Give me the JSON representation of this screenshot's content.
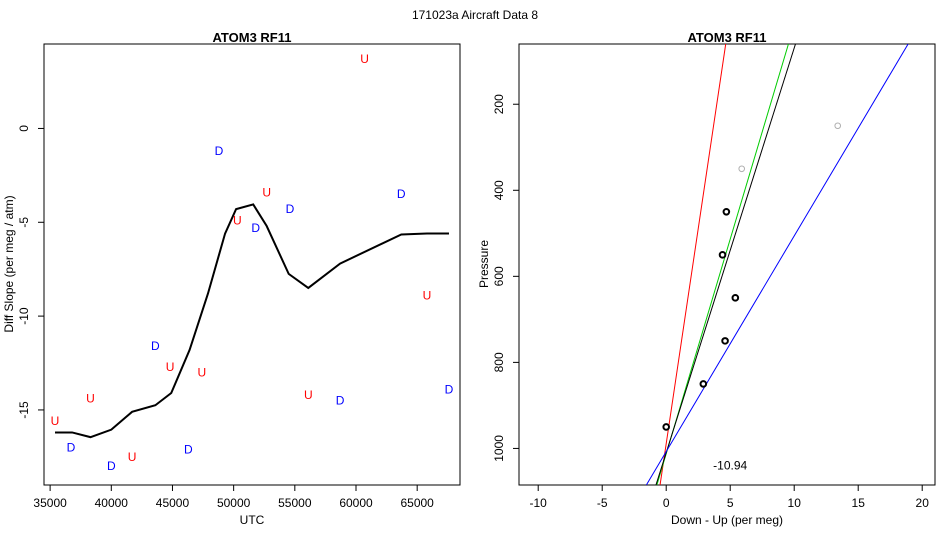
{
  "page_title": "171023a   Aircraft Data 8",
  "chart_data": [
    {
      "type": "scatter",
      "title": "ATOM3 RF11",
      "xlabel": "UTC",
      "ylabel": "Diff Slope (per meg / atm)",
      "xlim": [
        34500,
        68500
      ],
      "ylim": [
        -19.0,
        4.5
      ],
      "xticks": [
        35000,
        40000,
        45000,
        50000,
        55000,
        60000,
        65000
      ],
      "yticks": [
        -15,
        -10,
        -5,
        0
      ],
      "colors": {
        "U": "#ff0000",
        "D": "#0000ff",
        "line": "#000000"
      },
      "series": [
        {
          "name": "U",
          "points": [
            {
              "x": 35400,
              "y": -15.6
            },
            {
              "x": 38300,
              "y": -14.4
            },
            {
              "x": 41700,
              "y": -17.5
            },
            {
              "x": 44800,
              "y": -12.7
            },
            {
              "x": 47400,
              "y": -13.0
            },
            {
              "x": 50300,
              "y": -4.9
            },
            {
              "x": 52700,
              "y": -3.4
            },
            {
              "x": 56100,
              "y": -14.2
            },
            {
              "x": 60700,
              "y": 3.7
            },
            {
              "x": 65800,
              "y": -8.9
            }
          ]
        },
        {
          "name": "D",
          "points": [
            {
              "x": 36700,
              "y": -17.0
            },
            {
              "x": 40000,
              "y": -18.0
            },
            {
              "x": 43600,
              "y": -11.6
            },
            {
              "x": 46300,
              "y": -17.1
            },
            {
              "x": 48800,
              "y": -1.2
            },
            {
              "x": 51800,
              "y": -5.3
            },
            {
              "x": 54600,
              "y": -4.3
            },
            {
              "x": 58700,
              "y": -14.5
            },
            {
              "x": 63700,
              "y": -3.5
            },
            {
              "x": 67600,
              "y": -13.9
            }
          ]
        }
      ],
      "smooth_line": {
        "x": [
          35400,
          36800,
          38300,
          40000,
          41700,
          43600,
          44900,
          46400,
          47900,
          49300,
          50200,
          51600,
          52700,
          54500,
          56100,
          58700,
          63700,
          65800,
          67600
        ],
        "y": [
          -16.2,
          -16.2,
          -16.45,
          -16.05,
          -15.1,
          -14.75,
          -14.1,
          -11.8,
          -8.8,
          -5.6,
          -4.3,
          -4.05,
          -5.2,
          -7.75,
          -8.5,
          -7.2,
          -5.65,
          -5.6,
          -5.6
        ]
      }
    },
    {
      "type": "scatter",
      "title": "ATOM3 RF11",
      "xlabel": "Down - Up (per meg)",
      "ylabel": "Pressure",
      "xlim": [
        -11.5,
        21.0
      ],
      "ylim_reversed": [
        1085,
        60
      ],
      "xticks": [
        -10,
        -5,
        0,
        5,
        10,
        15,
        20
      ],
      "yticks": [
        200,
        400,
        600,
        800,
        1000
      ],
      "annotation": "-10.94",
      "annotation_pos": {
        "x": 5.0,
        "y": 1040
      },
      "points_main": [
        {
          "x": 0.0,
          "y": 950
        },
        {
          "x": 2.9,
          "y": 850
        },
        {
          "x": 4.6,
          "y": 750
        },
        {
          "x": 5.4,
          "y": 650
        },
        {
          "x": 4.4,
          "y": 550
        },
        {
          "x": 4.7,
          "y": 450
        }
      ],
      "points_grey": [
        {
          "x": 5.9,
          "y": 350
        },
        {
          "x": 13.4,
          "y": 250
        }
      ],
      "fit_lines": [
        {
          "color": "#ff0000",
          "p1": {
            "x": -0.48,
            "y": 1085
          },
          "p2": {
            "x": 4.65,
            "y": 60
          }
        },
        {
          "color": "#00cc00",
          "p1": {
            "x": -0.73,
            "y": 1085
          },
          "p2": {
            "x": 9.55,
            "y": 60
          }
        },
        {
          "color": "#000000",
          "p1": {
            "x": -0.8,
            "y": 1085
          },
          "p2": {
            "x": 10.1,
            "y": 60
          }
        },
        {
          "color": "#0000ff",
          "p1": {
            "x": -1.55,
            "y": 1085
          },
          "p2": {
            "x": 18.9,
            "y": 60
          }
        }
      ],
      "colors": {
        "main": "#000000",
        "grey": "#b0b0b0"
      }
    }
  ]
}
